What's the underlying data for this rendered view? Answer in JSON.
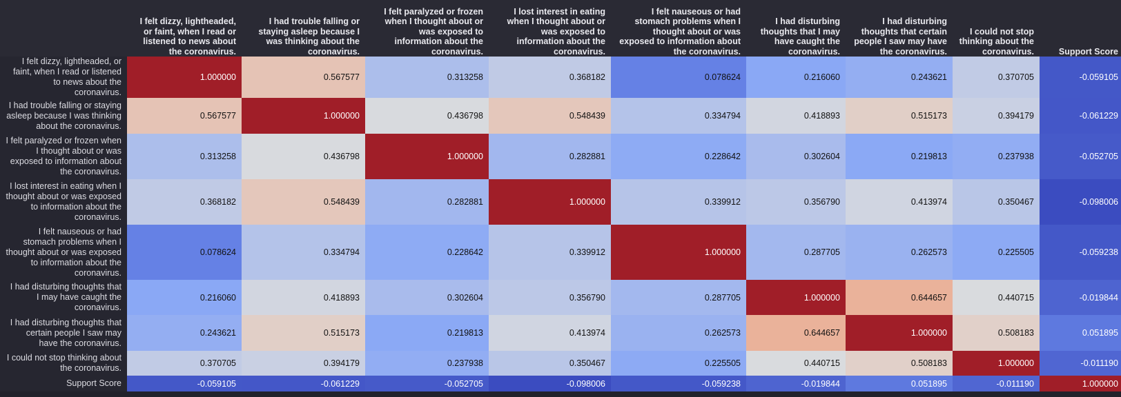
{
  "columns": [
    "I felt dizzy, lightheaded, or faint, when I read or listened to news about the coronavirus.",
    "I had trouble falling or staying asleep because I was thinking about the coronavirus.",
    "I felt paralyzed or frozen when I thought about or was exposed to information about the coronavirus.",
    "I lost interest in eating when I thought about or was exposed to information about the coronavirus.",
    "I felt nauseous or had stomach problems when I thought about or was exposed to information about the coronavirus.",
    "I had disturbing thoughts that I may have caught the coronavirus.",
    "I had disturbing thoughts that certain people I saw may have the coronavirus.",
    "I could not stop thinking about the coronavirus.",
    "Support Score"
  ],
  "rows": [
    {
      "label": "I felt dizzy, lightheaded, or faint, when I read or listened to news about the coronavirus.",
      "values": [
        "1.000000",
        "0.567577",
        "0.313258",
        "0.368182",
        "0.078624",
        "0.216060",
        "0.243621",
        "0.370705",
        "-0.059105"
      ]
    },
    {
      "label": "I had trouble falling or staying asleep because I was thinking about the coronavirus.",
      "values": [
        "0.567577",
        "1.000000",
        "0.436798",
        "0.548439",
        "0.334794",
        "0.418893",
        "0.515173",
        "0.394179",
        "-0.061229"
      ]
    },
    {
      "label": "I felt paralyzed or frozen when I thought about or was exposed to information about the coronavirus.",
      "values": [
        "0.313258",
        "0.436798",
        "1.000000",
        "0.282881",
        "0.228642",
        "0.302604",
        "0.219813",
        "0.237938",
        "-0.052705"
      ]
    },
    {
      "label": "I lost interest in eating when I thought about or was exposed to information about the coronavirus.",
      "values": [
        "0.368182",
        "0.548439",
        "0.282881",
        "1.000000",
        "0.339912",
        "0.356790",
        "0.413974",
        "0.350467",
        "-0.098006"
      ]
    },
    {
      "label": "I felt nauseous or had stomach problems when I thought about or was exposed to information about the coronavirus.",
      "values": [
        "0.078624",
        "0.334794",
        "0.228642",
        "0.339912",
        "1.000000",
        "0.287705",
        "0.262573",
        "0.225505",
        "-0.059238"
      ]
    },
    {
      "label": "I had disturbing thoughts that I may have caught the coronavirus.",
      "values": [
        "0.216060",
        "0.418893",
        "0.302604",
        "0.356790",
        "0.287705",
        "1.000000",
        "0.644657",
        "0.440715",
        "-0.019844"
      ]
    },
    {
      "label": "I had disturbing thoughts that certain people I saw may have the coronavirus.",
      "values": [
        "0.243621",
        "0.515173",
        "0.219813",
        "0.413974",
        "0.262573",
        "0.644657",
        "1.000000",
        "0.508183",
        "0.051895"
      ]
    },
    {
      "label": "I could not stop thinking about the coronavirus.",
      "values": [
        "0.370705",
        "0.394179",
        "0.237938",
        "0.350467",
        "0.225505",
        "0.440715",
        "0.508183",
        "1.000000",
        "-0.011190"
      ]
    },
    {
      "label": "Support Score",
      "values": [
        "-0.059105",
        "-0.061229",
        "-0.052705",
        "-0.098006",
        "-0.059238",
        "-0.019844",
        "0.051895",
        "-0.011190",
        "1.000000"
      ]
    }
  ]
}
